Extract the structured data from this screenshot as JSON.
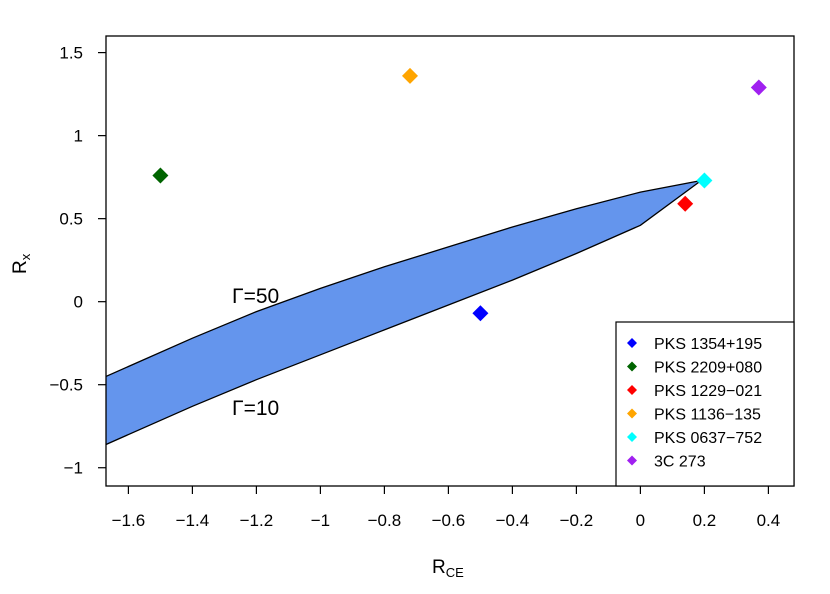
{
  "chart_data": {
    "type": "scatter",
    "title": "",
    "xlabel": {
      "main": "R",
      "sub": "CE"
    },
    "ylabel": {
      "main": "R",
      "sub": "x"
    },
    "xlim": [
      -1.67,
      0.48
    ],
    "ylim": [
      -1.11,
      1.6
    ],
    "xticks": [
      -1.6,
      -1.4,
      -1.2,
      -1.0,
      -0.8,
      -0.6,
      -0.4,
      -0.2,
      0.0,
      0.2,
      0.4
    ],
    "xtick_labels": [
      "−1.6",
      "−1.4",
      "−1.2",
      "−1",
      "−0.8",
      "−0.6",
      "−0.4",
      "−0.2",
      "0",
      "0.2",
      "0.4"
    ],
    "yticks": [
      -1.0,
      -0.5,
      0.0,
      0.5,
      1.0,
      1.5
    ],
    "ytick_labels": [
      "−1",
      "−0.5",
      "0",
      "0.5",
      "1",
      "1.5"
    ],
    "grid": false,
    "band": {
      "color": "#6495ED",
      "apex": {
        "x": 0.19,
        "y": 0.73
      },
      "upper_curve_label": "Γ=50",
      "lower_curve_label": "Γ=10",
      "upper_curve": [
        [
          -1.67,
          -0.45
        ],
        [
          -1.4,
          -0.22
        ],
        [
          -1.2,
          -0.06
        ],
        [
          -1.0,
          0.08
        ],
        [
          -0.8,
          0.21
        ],
        [
          -0.6,
          0.33
        ],
        [
          -0.4,
          0.45
        ],
        [
          -0.2,
          0.56
        ],
        [
          0.0,
          0.66
        ],
        [
          0.19,
          0.73
        ]
      ],
      "lower_curve": [
        [
          -1.67,
          -0.86
        ],
        [
          -1.4,
          -0.63
        ],
        [
          -1.2,
          -0.47
        ],
        [
          -1.0,
          -0.32
        ],
        [
          -0.8,
          -0.17
        ],
        [
          -0.6,
          -0.02
        ],
        [
          -0.4,
          0.13
        ],
        [
          -0.2,
          0.29
        ],
        [
          0.0,
          0.46
        ],
        [
          0.19,
          0.73
        ]
      ]
    },
    "series": [
      {
        "name": "PKS 1354+195",
        "color": "#0000FF",
        "x": -0.5,
        "y": -0.07
      },
      {
        "name": "PKS 2209+080",
        "color": "#006400",
        "x": -1.5,
        "y": 0.76
      },
      {
        "name": "PKS 1229−021",
        "color": "#FF0000",
        "x": 0.14,
        "y": 0.59
      },
      {
        "name": "PKS 1136−135",
        "color": "#FFA500",
        "x": -0.72,
        "y": 1.36
      },
      {
        "name": "PKS 0637−752",
        "color": "#00FFFF",
        "x": 0.2,
        "y": 0.73
      },
      {
        "name": "3C 273",
        "color": "#A020F0",
        "x": 0.37,
        "y": 1.29
      }
    ],
    "legend_position": "bottom-right"
  }
}
